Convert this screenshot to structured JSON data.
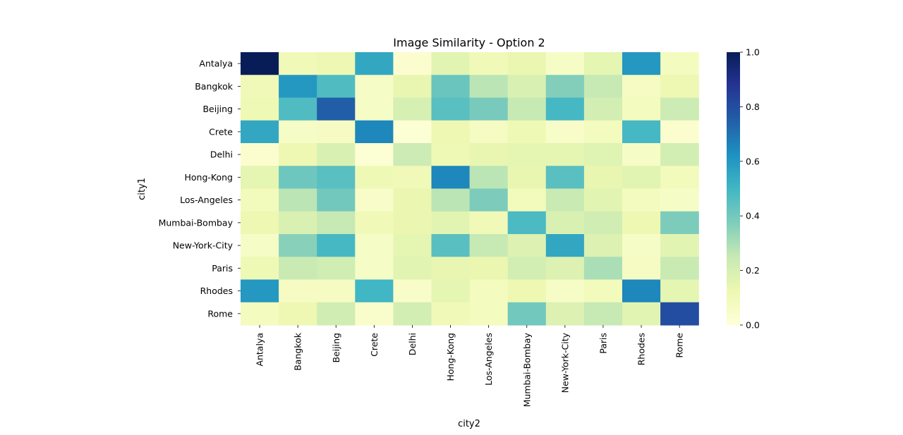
{
  "chart_data": {
    "type": "heatmap",
    "title": "Image Similarity - Option 2",
    "xlabel": "city2",
    "ylabel": "city1",
    "x_categories": [
      "Antalya",
      "Bangkok",
      "Beijing",
      "Crete",
      "Delhi",
      "Hong-Kong",
      "Los-Angeles",
      "Mumbai-Bombay",
      "New-York-City",
      "Paris",
      "Rhodes",
      "Rome"
    ],
    "y_categories": [
      "Antalya",
      "Bangkok",
      "Beijing",
      "Crete",
      "Delhi",
      "Hong-Kong",
      "Los-Angeles",
      "Mumbai-Bombay",
      "New-York-City",
      "Paris",
      "Rhodes",
      "Rome"
    ],
    "values": [
      [
        1.0,
        0.1,
        0.12,
        0.55,
        0.03,
        0.16,
        0.1,
        0.13,
        0.06,
        0.15,
        0.6,
        0.08
      ],
      [
        0.1,
        0.6,
        0.47,
        0.06,
        0.14,
        0.42,
        0.27,
        0.19,
        0.37,
        0.25,
        0.07,
        0.12
      ],
      [
        0.11,
        0.47,
        0.75,
        0.06,
        0.2,
        0.45,
        0.39,
        0.25,
        0.49,
        0.21,
        0.08,
        0.23
      ],
      [
        0.55,
        0.06,
        0.07,
        0.65,
        0.02,
        0.12,
        0.07,
        0.11,
        0.05,
        0.08,
        0.49,
        0.03
      ],
      [
        0.03,
        0.12,
        0.19,
        0.02,
        0.23,
        0.11,
        0.14,
        0.15,
        0.15,
        0.17,
        0.06,
        0.21
      ],
      [
        0.15,
        0.41,
        0.45,
        0.11,
        0.1,
        0.65,
        0.27,
        0.14,
        0.45,
        0.14,
        0.16,
        0.09
      ],
      [
        0.09,
        0.27,
        0.4,
        0.05,
        0.13,
        0.27,
        0.38,
        0.09,
        0.24,
        0.16,
        0.08,
        0.06
      ],
      [
        0.12,
        0.19,
        0.25,
        0.1,
        0.13,
        0.16,
        0.1,
        0.48,
        0.19,
        0.22,
        0.12,
        0.38
      ],
      [
        0.06,
        0.36,
        0.49,
        0.06,
        0.15,
        0.45,
        0.25,
        0.18,
        0.55,
        0.18,
        0.06,
        0.16
      ],
      [
        0.11,
        0.24,
        0.22,
        0.06,
        0.16,
        0.14,
        0.13,
        0.21,
        0.18,
        0.3,
        0.07,
        0.24
      ],
      [
        0.6,
        0.07,
        0.07,
        0.5,
        0.05,
        0.15,
        0.08,
        0.12,
        0.06,
        0.09,
        0.65,
        0.15
      ],
      [
        0.08,
        0.12,
        0.22,
        0.04,
        0.21,
        0.1,
        0.08,
        0.4,
        0.18,
        0.25,
        0.16,
        0.8
      ]
    ],
    "vmin": 0.0,
    "vmax": 1.0,
    "colormap": "YlGnBu",
    "colorbar_ticks": [
      "0.0",
      "0.2",
      "0.4",
      "0.6",
      "0.8",
      "1.0"
    ],
    "colorbar_placement": "right",
    "grid": false
  }
}
